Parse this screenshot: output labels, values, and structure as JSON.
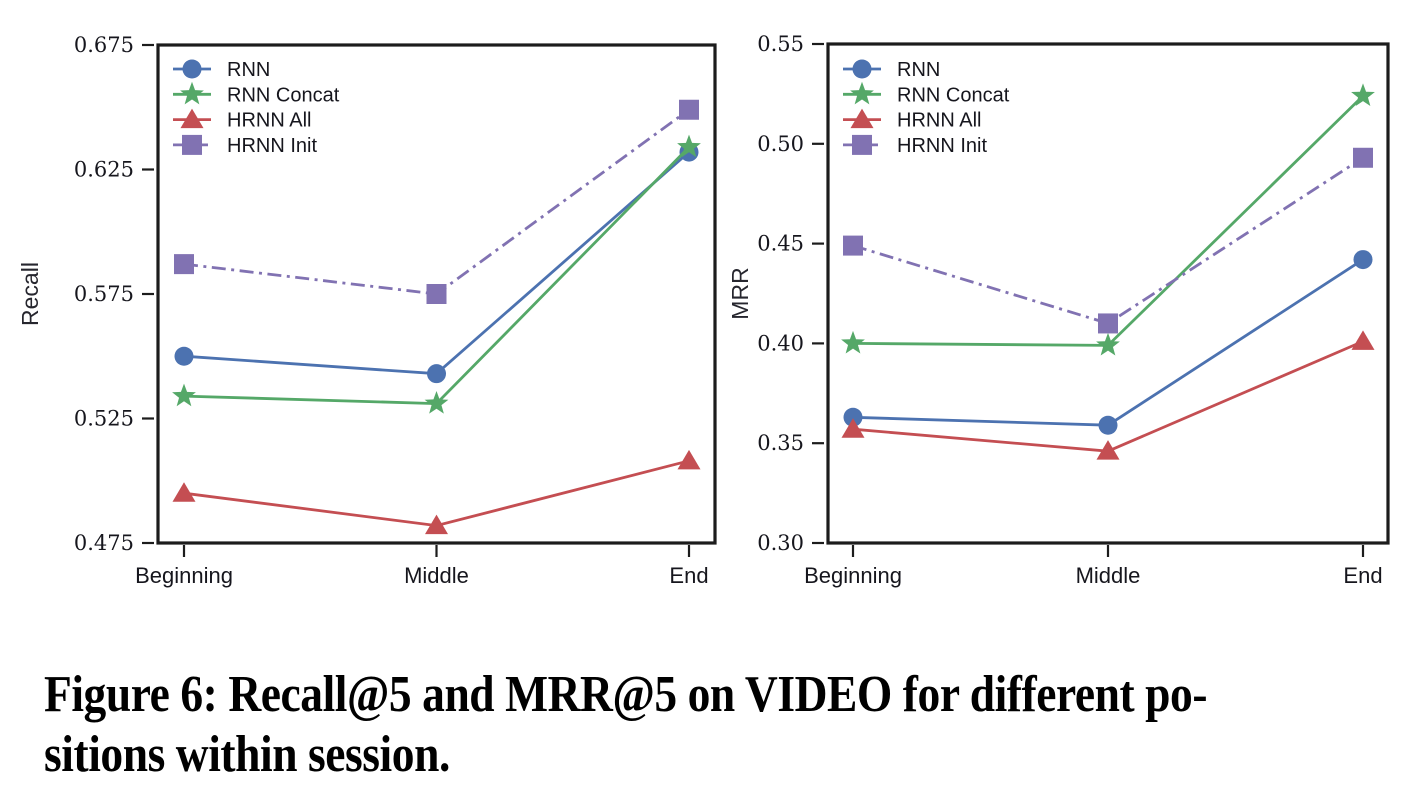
{
  "figure": {
    "caption_line1": "Figure 6: Recall@5 and MRR@5 on VIDEO for different po-",
    "caption_line2": "sitions within session."
  },
  "palette": {
    "blue": "#4C72B0",
    "green": "#55A868",
    "red": "#C44E52",
    "purple": "#8172B2",
    "spine": "#1c1c1c",
    "text": "#16161d"
  },
  "chart_data": [
    {
      "type": "line",
      "title": "",
      "xlabel": "",
      "ylabel": "Recall",
      "categories": [
        "Beginning",
        "Middle",
        "End"
      ],
      "ylim": [
        0.475,
        0.675
      ],
      "yticks": [
        0.475,
        0.525,
        0.575,
        0.625,
        0.675
      ],
      "ytick_labels": [
        "0.475",
        "0.525",
        "0.575",
        "0.625",
        "0.675"
      ],
      "grid": false,
      "legend_position": "upper left",
      "series": [
        {
          "name": "RNN",
          "color": "#4C72B0",
          "marker": "circle",
          "line": "solid",
          "values": [
            0.55,
            0.543,
            0.632
          ]
        },
        {
          "name": "RNN Concat",
          "color": "#55A868",
          "marker": "star",
          "line": "solid",
          "values": [
            0.534,
            0.531,
            0.634
          ]
        },
        {
          "name": "HRNN All",
          "color": "#C44E52",
          "marker": "triangle",
          "line": "solid",
          "values": [
            0.495,
            0.482,
            0.508
          ]
        },
        {
          "name": "HRNN Init",
          "color": "#8172B2",
          "marker": "square",
          "line": "dashdot",
          "values": [
            0.587,
            0.575,
            0.649
          ]
        }
      ]
    },
    {
      "type": "line",
      "title": "",
      "xlabel": "",
      "ylabel": "MRR",
      "categories": [
        "Beginning",
        "Middle",
        "End"
      ],
      "ylim": [
        0.3,
        0.55
      ],
      "yticks": [
        0.3,
        0.35,
        0.4,
        0.45,
        0.5,
        0.55
      ],
      "ytick_labels": [
        "0.30",
        "0.35",
        "0.40",
        "0.45",
        "0.50",
        "0.55"
      ],
      "grid": false,
      "legend_position": "upper left",
      "series": [
        {
          "name": "RNN",
          "color": "#4C72B0",
          "marker": "circle",
          "line": "solid",
          "values": [
            0.363,
            0.359,
            0.442
          ]
        },
        {
          "name": "RNN Concat",
          "color": "#55A868",
          "marker": "star",
          "line": "solid",
          "values": [
            0.4,
            0.399,
            0.524
          ]
        },
        {
          "name": "HRNN All",
          "color": "#C44E52",
          "marker": "triangle",
          "line": "solid",
          "values": [
            0.357,
            0.346,
            0.401
          ]
        },
        {
          "name": "HRNN Init",
          "color": "#8172B2",
          "marker": "square",
          "line": "dashdot",
          "values": [
            0.449,
            0.41,
            0.493
          ]
        }
      ]
    }
  ]
}
